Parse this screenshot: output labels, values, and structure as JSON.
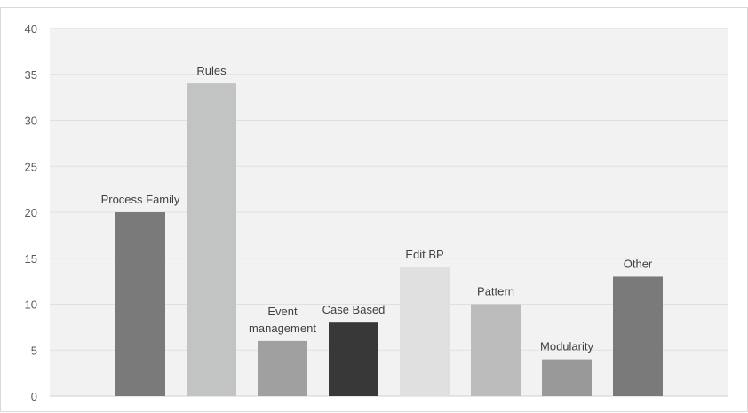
{
  "chart_data": {
    "type": "bar",
    "title": "",
    "xlabel": "",
    "ylabel": "",
    "ylim": [
      0,
      40
    ],
    "yticks": [
      "0",
      "5",
      "10",
      "15",
      "20",
      "25",
      "30",
      "35",
      "40"
    ],
    "grid": true,
    "legend": "none",
    "categories": [
      [
        "Process Family"
      ],
      [
        "Rules"
      ],
      [
        "Event",
        "management"
      ],
      [
        "Case Based"
      ],
      [
        "Edit BP"
      ],
      [
        "Pattern"
      ],
      [
        "Modularity"
      ],
      [
        "Other"
      ]
    ],
    "values": [
      20,
      34,
      6,
      8,
      14,
      10,
      4,
      13
    ],
    "colors": [
      "#7a7a7a",
      "#c2c4c3",
      "#a0a0a0",
      "#383838",
      "#dfe0df",
      "#bbbcbb",
      "#999999",
      "#7a7a7a"
    ],
    "plot_background": "#f2f2f2",
    "gridline_color": "#e0e0e0"
  }
}
